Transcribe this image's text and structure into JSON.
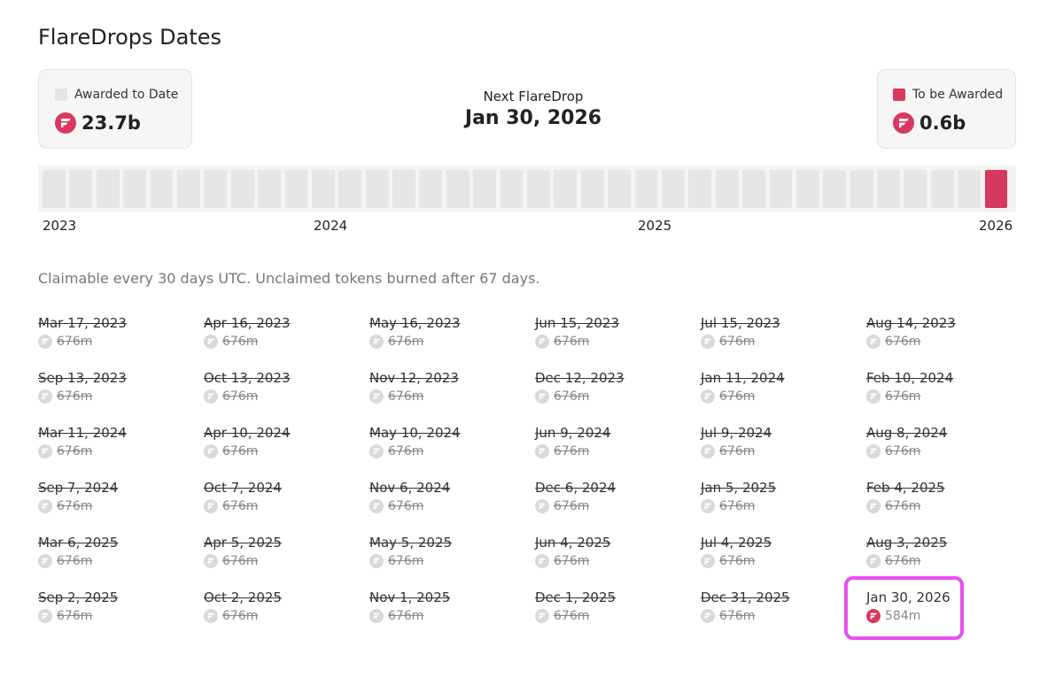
{
  "header": {
    "title": "FlareDrops Dates"
  },
  "summary": {
    "awarded": {
      "label": "Awarded to Date",
      "amount": "23.7b"
    },
    "next": {
      "label": "Next FlareDrop",
      "date": "Jan 30, 2026"
    },
    "pending": {
      "label": "To be Awarded",
      "amount": "0.6b"
    }
  },
  "timeline": {
    "years": [
      "2023",
      "2024",
      "2025",
      "2026"
    ]
  },
  "note": "Claimable every 30 days UTC. Unclaimed tokens burned after 67 days.",
  "drops": [
    {
      "date": "Mar 17, 2023",
      "amount": "676m",
      "claimed": true
    },
    {
      "date": "Apr 16, 2023",
      "amount": "676m",
      "claimed": true
    },
    {
      "date": "May 16, 2023",
      "amount": "676m",
      "claimed": true
    },
    {
      "date": "Jun 15, 2023",
      "amount": "676m",
      "claimed": true
    },
    {
      "date": "Jul 15, 2023",
      "amount": "676m",
      "claimed": true
    },
    {
      "date": "Aug 14, 2023",
      "amount": "676m",
      "claimed": true
    },
    {
      "date": "Sep 13, 2023",
      "amount": "676m",
      "claimed": true
    },
    {
      "date": "Oct 13, 2023",
      "amount": "676m",
      "claimed": true
    },
    {
      "date": "Nov 12, 2023",
      "amount": "676m",
      "claimed": true
    },
    {
      "date": "Dec 12, 2023",
      "amount": "676m",
      "claimed": true
    },
    {
      "date": "Jan 11, 2024",
      "amount": "676m",
      "claimed": true
    },
    {
      "date": "Feb 10, 2024",
      "amount": "676m",
      "claimed": true
    },
    {
      "date": "Mar 11, 2024",
      "amount": "676m",
      "claimed": true
    },
    {
      "date": "Apr 10, 2024",
      "amount": "676m",
      "claimed": true
    },
    {
      "date": "May 10, 2024",
      "amount": "676m",
      "claimed": true
    },
    {
      "date": "Jun 9, 2024",
      "amount": "676m",
      "claimed": true
    },
    {
      "date": "Jul 9, 2024",
      "amount": "676m",
      "claimed": true
    },
    {
      "date": "Aug 8, 2024",
      "amount": "676m",
      "claimed": true
    },
    {
      "date": "Sep 7, 2024",
      "amount": "676m",
      "claimed": true
    },
    {
      "date": "Oct 7, 2024",
      "amount": "676m",
      "claimed": true
    },
    {
      "date": "Nov 6, 2024",
      "amount": "676m",
      "claimed": true
    },
    {
      "date": "Dec 6, 2024",
      "amount": "676m",
      "claimed": true
    },
    {
      "date": "Jan 5, 2025",
      "amount": "676m",
      "claimed": true
    },
    {
      "date": "Feb 4, 2025",
      "amount": "676m",
      "claimed": true
    },
    {
      "date": "Mar 6, 2025",
      "amount": "676m",
      "claimed": true
    },
    {
      "date": "Apr 5, 2025",
      "amount": "676m",
      "claimed": true
    },
    {
      "date": "May 5, 2025",
      "amount": "676m",
      "claimed": true
    },
    {
      "date": "Jun 4, 2025",
      "amount": "676m",
      "claimed": true
    },
    {
      "date": "Jul 4, 2025",
      "amount": "676m",
      "claimed": true
    },
    {
      "date": "Aug 3, 2025",
      "amount": "676m",
      "claimed": true
    },
    {
      "date": "Sep 2, 2025",
      "amount": "676m",
      "claimed": true
    },
    {
      "date": "Oct 2, 2025",
      "amount": "676m",
      "claimed": true
    },
    {
      "date": "Nov 1, 2025",
      "amount": "676m",
      "claimed": true
    },
    {
      "date": "Dec 1, 2025",
      "amount": "676m",
      "claimed": true
    },
    {
      "date": "Dec 31, 2025",
      "amount": "676m",
      "claimed": true
    },
    {
      "date": "Jan 30, 2026",
      "amount": "584m",
      "claimed": false
    }
  ]
}
